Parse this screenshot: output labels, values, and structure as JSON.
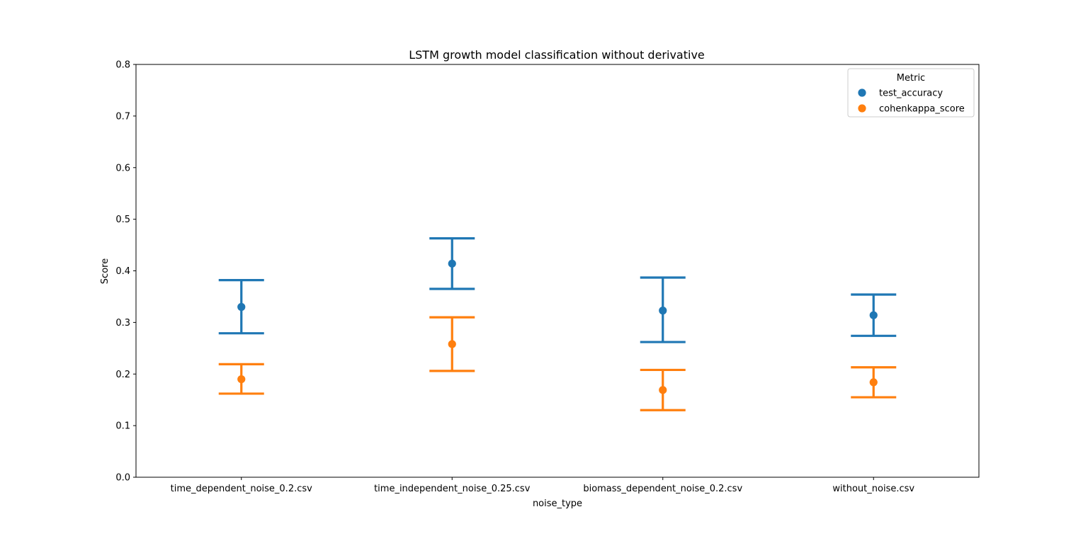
{
  "chart_data": {
    "type": "pointplot",
    "title": "LSTM growth model classification without derivative",
    "xlabel": "noise_type",
    "ylabel": "Score",
    "ylim": [
      0,
      0.8
    ],
    "yticks": [
      "0.0",
      "0.1",
      "0.2",
      "0.3",
      "0.4",
      "0.5",
      "0.6",
      "0.7",
      "0.8"
    ],
    "categories": [
      "time_dependent_noise_0.2.csv",
      "time_independent_noise_0.25.csv",
      "biomass_dependent_noise_0.2.csv",
      "without_noise.csv"
    ],
    "legend": {
      "title": "Metric",
      "placement": "top-right"
    },
    "series": [
      {
        "name": "test_accuracy",
        "color": "#1f77b4",
        "values": [
          0.33,
          0.414,
          0.323,
          0.314
        ],
        "ci_low": [
          0.279,
          0.365,
          0.262,
          0.274
        ],
        "ci_high": [
          0.382,
          0.463,
          0.387,
          0.354
        ]
      },
      {
        "name": "cohenkappa_score",
        "color": "#ff7f0e",
        "values": [
          0.19,
          0.258,
          0.169,
          0.184
        ],
        "ci_low": [
          0.162,
          0.206,
          0.13,
          0.155
        ],
        "ci_high": [
          0.219,
          0.31,
          0.208,
          0.213
        ]
      }
    ]
  }
}
